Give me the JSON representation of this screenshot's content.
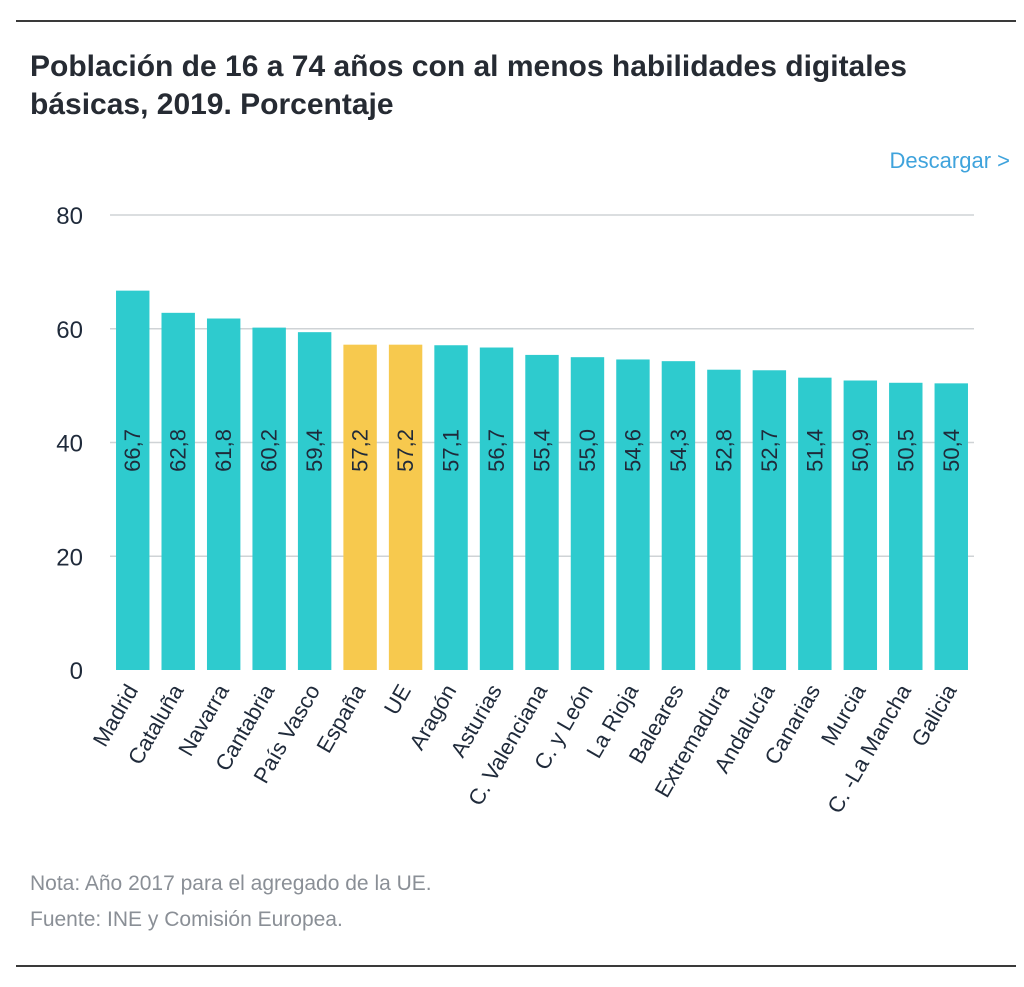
{
  "header": {
    "title": "Población de 16 a 74 años con al menos habilidades digitales básicas, 2019. Porcentaje",
    "download_label": "Descargar >"
  },
  "chart_data": {
    "type": "bar",
    "title": "Población de 16 a 74 años con al menos habilidades digitales básicas, 2019. Porcentaje",
    "xlabel": "",
    "ylabel": "",
    "ylim": [
      0,
      80
    ],
    "yticks": [
      0,
      20,
      40,
      60,
      80
    ],
    "grid": true,
    "categories": [
      "Madrid",
      "Cataluña",
      "Navarra",
      "Cantabria",
      "País Vasco",
      "España",
      "UE",
      "Aragón",
      "Asturias",
      "C. Valenciana",
      "C. y León",
      "La Rioja",
      "Baleares",
      "Extremadura",
      "Andalucía",
      "Canarias",
      "Murcia",
      "C. -La Mancha",
      "Galicia"
    ],
    "values": [
      66.7,
      62.8,
      61.8,
      60.2,
      59.4,
      57.2,
      57.2,
      57.1,
      56.7,
      55.4,
      55.0,
      54.6,
      54.3,
      52.8,
      52.7,
      51.4,
      50.9,
      50.5,
      50.4
    ],
    "value_labels": [
      "66,7",
      "62,8",
      "61,8",
      "60,2",
      "59,4",
      "57,2",
      "57,2",
      "57,1",
      "56,7",
      "55,4",
      "55,0",
      "54,6",
      "54,3",
      "52,8",
      "52,7",
      "51,4",
      "50,9",
      "50,5",
      "50,4"
    ],
    "highlighted": [
      "España",
      "UE"
    ],
    "colors": {
      "default": "#2ecbce",
      "highlight": "#f7c94e",
      "grid": "#cfd3d6",
      "text": "#1f2a3a"
    }
  },
  "footer": {
    "note": "Nota: Año 2017 para el agregado de la UE.",
    "source": "Fuente: INE y Comisión Europea."
  }
}
